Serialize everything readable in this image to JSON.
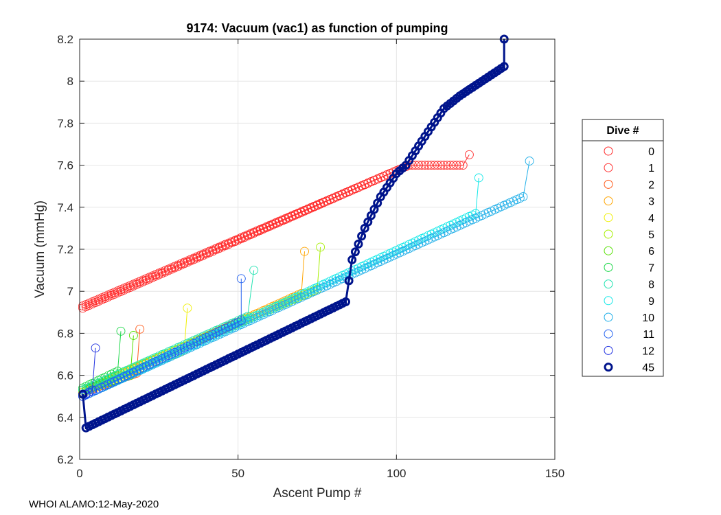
{
  "chart_data": {
    "type": "scatter",
    "title": "9174: Vacuum (vac1) as function of pumping",
    "xlabel": "Ascent Pump #",
    "ylabel": "Vacuum (mmHg)",
    "xlim": [
      0,
      150
    ],
    "ylim": [
      6.2,
      8.2
    ],
    "xticks": [
      0,
      50,
      100,
      150
    ],
    "xtick_labels": [
      "0",
      "50",
      "100",
      "150"
    ],
    "yticks": [
      6.2,
      6.4,
      6.6,
      6.8,
      7.0,
      7.2,
      7.4,
      7.6,
      7.8,
      8.0,
      8.2
    ],
    "ytick_labels": [
      "6.2",
      "6.4",
      "6.6",
      "6.8",
      "7",
      "7.2",
      "7.4",
      "7.6",
      "7.8",
      "8",
      "8.2"
    ],
    "grid": true,
    "legend_title": "Dive #",
    "legend_position": "outside-right",
    "series": [
      {
        "name": "0",
        "color": "#ff2a2a",
        "start": [
          1,
          6.92
        ],
        "end": [
          104,
          7.6
        ],
        "n": 104,
        "spike": null
      },
      {
        "name": "1",
        "color": "#ff2a2a",
        "start": [
          1,
          6.93
        ],
        "end": [
          121,
          7.6
        ],
        "n": 121,
        "spike": [
          123,
          7.65
        ],
        "plateau_from": 104
      },
      {
        "name": "2",
        "color": "#ff5a1a",
        "start": [
          1,
          6.52
        ],
        "end": [
          18,
          6.61
        ],
        "n": 18,
        "spike": [
          19,
          6.82
        ]
      },
      {
        "name": "3",
        "color": "#ffa500",
        "start": [
          1,
          6.52
        ],
        "end": [
          70,
          6.99
        ],
        "n": 70,
        "spike": [
          71,
          7.19
        ]
      },
      {
        "name": "4",
        "color": "#f0f000",
        "start": [
          1,
          6.52
        ],
        "end": [
          33,
          6.72
        ],
        "n": 33,
        "spike": [
          34,
          6.92
        ]
      },
      {
        "name": "5",
        "color": "#a6f000",
        "start": [
          1,
          6.53
        ],
        "end": [
          75,
          7.01
        ],
        "n": 75,
        "spike": [
          76,
          7.21
        ]
      },
      {
        "name": "6",
        "color": "#55e000",
        "start": [
          1,
          6.53
        ],
        "end": [
          16,
          6.6
        ],
        "n": 16,
        "spike": [
          17,
          6.79
        ]
      },
      {
        "name": "7",
        "color": "#1ed84a",
        "start": [
          1,
          6.54
        ],
        "end": [
          12,
          6.62
        ],
        "n": 12,
        "spike": [
          13,
          6.81
        ]
      },
      {
        "name": "8",
        "color": "#1fe3b0",
        "start": [
          1,
          6.53
        ],
        "end": [
          53,
          6.88
        ],
        "n": 53,
        "spike": [
          55,
          7.1
        ]
      },
      {
        "name": "9",
        "color": "#10e8e8",
        "start": [
          1,
          6.5
        ],
        "end": [
          125,
          7.37
        ],
        "n": 125,
        "spike": [
          126,
          7.54
        ]
      },
      {
        "name": "10",
        "color": "#1eaee8",
        "start": [
          1,
          6.5
        ],
        "end": [
          140,
          7.45
        ],
        "n": 140,
        "spike": [
          142,
          7.62
        ]
      },
      {
        "name": "11",
        "color": "#1f5ff0",
        "start": [
          1,
          6.5
        ],
        "end": [
          51,
          6.86
        ],
        "n": 51,
        "spike": [
          51,
          7.06
        ]
      },
      {
        "name": "12",
        "color": "#1f30e0",
        "start": [
          1,
          6.5
        ],
        "end": [
          4,
          6.53
        ],
        "n": 4,
        "spike": [
          5,
          6.73
        ]
      },
      {
        "name": "45",
        "color": "#00148c",
        "bold": true,
        "points": [
          [
            1,
            6.51
          ],
          [
            2,
            6.35
          ],
          [
            84,
            6.95
          ],
          [
            85,
            7.05
          ],
          [
            86,
            7.15
          ],
          [
            90,
            7.3
          ],
          [
            95,
            7.45
          ],
          [
            100,
            7.56
          ],
          [
            103,
            7.6
          ],
          [
            110,
            7.76
          ],
          [
            115,
            7.87
          ],
          [
            120,
            7.93
          ],
          [
            125,
            7.98
          ],
          [
            130,
            8.03
          ],
          [
            133,
            8.06
          ],
          [
            134,
            8.07
          ],
          [
            134,
            8.2
          ]
        ]
      }
    ]
  },
  "footer": "WHOI ALAMO:12-May-2020"
}
